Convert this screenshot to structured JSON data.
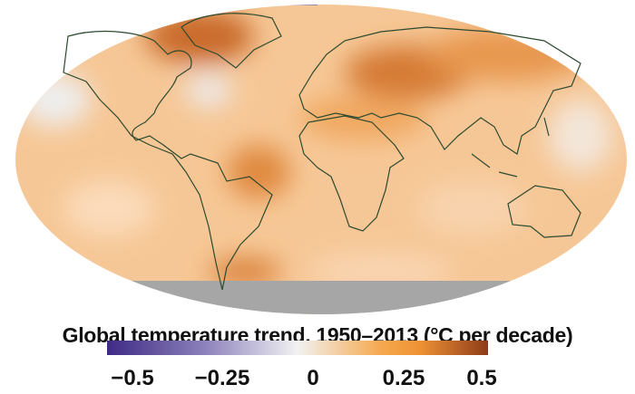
{
  "legend": {
    "title": "Global temperature trend, 1950–2013 (°C per decade)",
    "ticks": [
      "−0.5",
      "−0.25",
      "0",
      "0.25",
      "0.5"
    ],
    "range": [
      -0.5,
      0.5
    ],
    "colors": {
      "min": "#3e2a84",
      "zero": "#f2f2f2",
      "mid_warm": "#f6a84e",
      "max": "#8e3c1a"
    }
  },
  "map": {
    "projection": "Robinson",
    "base_color": "#f5c38f",
    "no_data_color": "#a6a6a6",
    "coastline_color": "#2d4a2f"
  }
}
